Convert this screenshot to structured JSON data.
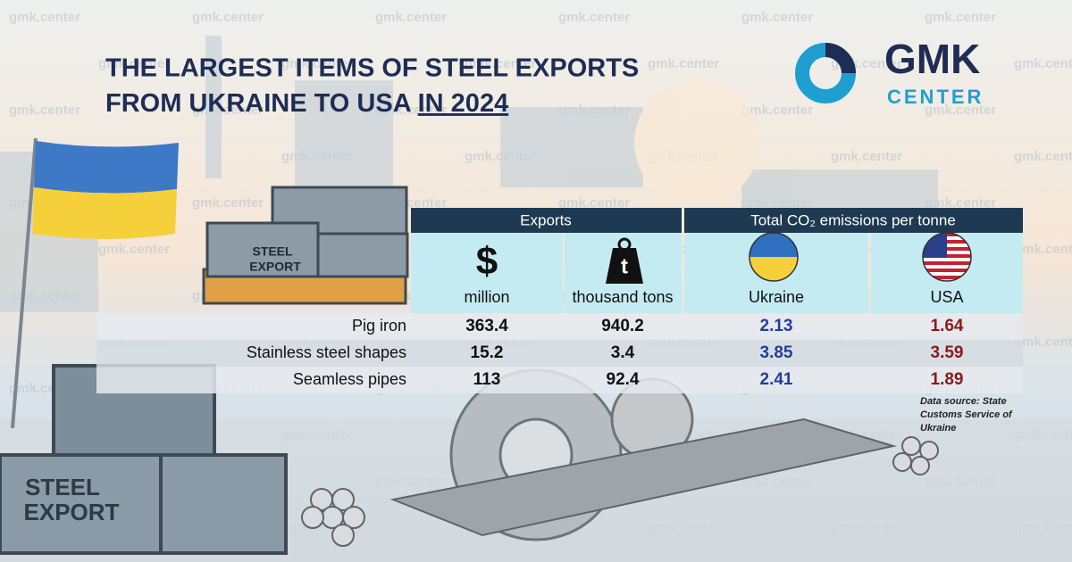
{
  "title": {
    "lines": [
      "THE LARGEST ITEMS OF STEEL EXPORTS",
      "FROM UKRAINE TO USA"
    ],
    "highlight": "IN 2024"
  },
  "logo": {
    "name": "GMK",
    "sub": "CENTER"
  },
  "watermark": "gmk.center",
  "crate_label": [
    "STEEL",
    "EXPORT"
  ],
  "table": {
    "groups": [
      "Exports",
      "Total CO₂ emissions per tonne"
    ],
    "columns": [
      {
        "icon": "$",
        "label": "million"
      },
      {
        "icon": "t",
        "label": "thousand tons"
      },
      {
        "label": "Ukraine"
      },
      {
        "label": "USA"
      }
    ],
    "rows": [
      [
        "Pig iron",
        363.4,
        940.2,
        2.13,
        1.64
      ],
      [
        "Stainless steel shapes",
        15.2,
        3.4,
        3.85,
        3.59
      ],
      [
        "Seamless pipes",
        113,
        92.4,
        2.41,
        1.89
      ]
    ]
  },
  "source": [
    "Data source: State",
    "Customs Service of",
    "Ukraine"
  ]
}
